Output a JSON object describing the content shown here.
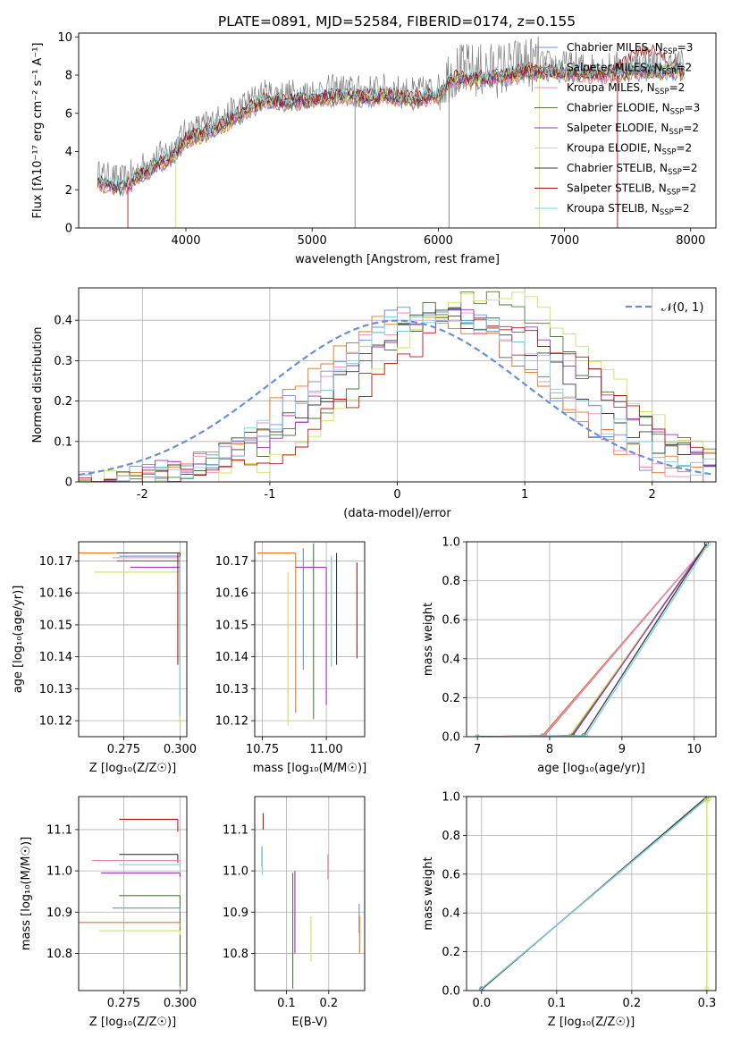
{
  "figure": {
    "title": "PLATE=0891, MJD=52584, FIBERID=0174, z=0.155"
  },
  "colors": {
    "chabrier_miles": "#6a8fd8",
    "salpeter_miles": "#e8731c",
    "kroupa_miles": "#f08ab4",
    "chabrier_elodie": "#4f7a3c",
    "salpeter_elodie": "#9a35b8",
    "kroupa_elodie": "#cfe35a",
    "chabrier_stelib": "#3b3b3b",
    "salpeter_stelib": "#b01818",
    "kroupa_stelib": "#7dd3dc",
    "data": "#808080",
    "normal_curve": "#6a8fd8",
    "grid": "#b0b0b0"
  },
  "chart_data": [
    {
      "id": "spectrum",
      "type": "line",
      "title": "PLATE=0891, MJD=52584, FIBERID=0174, z=0.155",
      "xlabel": "wavelength [Angstrom, rest frame]",
      "ylabel": "Flux [fλ10⁻¹⁷ erg cm⁻² s⁻¹ A⁻¹]",
      "xlim": [
        3150,
        8200
      ],
      "ylim": [
        0,
        10.2
      ],
      "xticks": [
        4000,
        5000,
        6000,
        7000,
        8000
      ],
      "yticks": [
        0,
        2,
        4,
        6,
        8,
        10
      ],
      "grid": false,
      "legend_position": "top-right",
      "continuum_x": [
        3300,
        3500,
        3700,
        3900,
        4000,
        4200,
        4400,
        4600,
        4800,
        5000,
        5200,
        5400,
        5600,
        5800,
        6000,
        6100,
        6300,
        6500,
        6700,
        7000,
        7300,
        7600,
        7900
      ],
      "continuum_y": [
        2.8,
        2.5,
        3.4,
        4.2,
        5.0,
        5.5,
        6.2,
        7.0,
        7.0,
        7.1,
        7.3,
        7.2,
        7.3,
        7.1,
        7.3,
        8.2,
        8.2,
        8.3,
        8.6,
        8.5,
        8.4,
        8.6,
        8.6
      ],
      "series": [
        {
          "name": "Chabrier MILES, N_SSP=3",
          "label_main": "Chabrier MILES, N",
          "label_sub": "SSP",
          "label_tail": "=3",
          "color_key": "chabrier_miles"
        },
        {
          "name": "Salpeter MILES, N_SSP=2",
          "label_main": "Salpeter MILES, N",
          "label_sub": "SSP",
          "label_tail": "=2",
          "color_key": "salpeter_miles"
        },
        {
          "name": "Kroupa MILES, N_SSP=2",
          "label_main": "Kroupa MILES, N",
          "label_sub": "SSP",
          "label_tail": "=2",
          "color_key": "kroupa_miles"
        },
        {
          "name": "Chabrier ELODIE, N_SSP=3",
          "label_main": "Chabrier ELODIE, N",
          "label_sub": "SSP",
          "label_tail": "=3",
          "color_key": "chabrier_elodie"
        },
        {
          "name": "Salpeter ELODIE, N_SSP=2",
          "label_main": "Salpeter ELODIE, N",
          "label_sub": "SSP",
          "label_tail": "=2",
          "color_key": "salpeter_elodie"
        },
        {
          "name": "Kroupa ELODIE, N_SSP=2",
          "label_main": "Kroupa ELODIE, N",
          "label_sub": "SSP",
          "label_tail": "=2",
          "color_key": "kroupa_elodie"
        },
        {
          "name": "Chabrier STELIB, N_SSP=2",
          "label_main": "Chabrier STELIB, N",
          "label_sub": "SSP",
          "label_tail": "=2",
          "color_key": "chabrier_stelib"
        },
        {
          "name": "Salpeter STELIB, N_SSP=2",
          "label_main": "Salpeter STELIB, N",
          "label_sub": "SSP",
          "label_tail": "=2",
          "color_key": "salpeter_stelib"
        },
        {
          "name": "Kroupa STELIB, N_SSP=2",
          "label_main": "Kroupa STELIB, N",
          "label_sub": "SSP",
          "label_tail": "=2",
          "color_key": "kroupa_stelib"
        }
      ]
    },
    {
      "id": "residuals",
      "type": "line",
      "xlabel": "(data-model)/error",
      "ylabel": "Normed distribution",
      "xlim": [
        -2.5,
        2.5
      ],
      "ylim": [
        0,
        0.48
      ],
      "xticks": [
        -2,
        -1,
        0,
        1,
        2
      ],
      "yticks": [
        0.0,
        0.1,
        0.2,
        0.3,
        0.4
      ],
      "grid": true,
      "legend_position": "top-right",
      "legend_label": "𝒩(0, 1)",
      "bin_width": 0.1,
      "hist_centers": [
        -2.5,
        -2.0,
        -1.5,
        -1.0,
        -0.5,
        0.0,
        0.5,
        1.0,
        1.5,
        2.0,
        2.5
      ],
      "hist_shifts": [
        0.25,
        0.2,
        0.3,
        0.6,
        0.55,
        0.75,
        0.45,
        0.7,
        0.35
      ],
      "hist_peaks": [
        0.43,
        0.41,
        0.42,
        0.45,
        0.41,
        0.46,
        0.4,
        0.4,
        0.42
      ],
      "hist_widths": [
        0.85,
        0.9,
        0.85,
        0.9,
        1.0,
        0.85,
        0.95,
        0.9,
        0.9
      ],
      "normal_mean": 0,
      "normal_sigma": 1
    },
    {
      "id": "age_vs_Z",
      "type": "scatter",
      "xlabel": "Z [log₁₀(Z/Z☉)]",
      "ylabel": "age  [log₁₀(age/yr)]",
      "xlim": [
        0.255,
        0.303
      ],
      "ylim": [
        10.115,
        10.176
      ],
      "xticks": [
        "0.275",
        "0.300"
      ],
      "yticks": [
        "10.12",
        "10.13",
        "10.14",
        "10.15",
        "10.16",
        "10.17"
      ],
      "grid": true,
      "points": [
        {
          "x": 0.3,
          "y": 10.1725,
          "xerr_low": 0.045,
          "yerr_low": 0.034,
          "color_key": "salpeter_miles"
        },
        {
          "x": 0.3,
          "y": 10.1715,
          "xerr_low": 0.027,
          "yerr_low": 0.052,
          "color_key": "chabrier_miles"
        },
        {
          "x": 0.3,
          "y": 10.171,
          "xerr_low": 0.03,
          "yerr_low": 0.05,
          "color_key": "kroupa_miles"
        },
        {
          "x": 0.3,
          "y": 10.17,
          "xerr_low": 0.028,
          "yerr_low": 0.048,
          "color_key": "chabrier_elodie"
        },
        {
          "x": 0.3,
          "y": 10.168,
          "xerr_low": 0.022,
          "yerr_low": 0.03,
          "color_key": "salpeter_elodie"
        },
        {
          "x": 0.3,
          "y": 10.1665,
          "xerr_low": 0.038,
          "yerr_low": 0.048,
          "color_key": "kroupa_elodie"
        },
        {
          "x": 0.3,
          "y": 10.1725,
          "xerr_low": 0.028,
          "yerr_low": 0.034,
          "color_key": "chabrier_stelib"
        },
        {
          "x": 0.299,
          "y": 10.1725,
          "xerr_low": 0.0,
          "yerr_low": 0.035,
          "color_key": "salpeter_stelib"
        },
        {
          "x": 0.3,
          "y": 10.1715,
          "xerr_low": 0.0,
          "yerr_low": 0.05,
          "color_key": "kroupa_stelib"
        }
      ]
    },
    {
      "id": "age_vs_mass",
      "type": "scatter",
      "xlabel": "mass [log₁₀(M/M☉)]",
      "ylabel": "",
      "xlim": [
        10.72,
        11.15
      ],
      "ylim": [
        10.115,
        10.176
      ],
      "xticks": [
        "10.75",
        "11.00"
      ],
      "yticks": [
        "10.12",
        "10.13",
        "10.14",
        "10.15",
        "10.16",
        "10.17"
      ],
      "grid": true,
      "points": [
        {
          "x": 10.91,
          "y": 10.174,
          "xerr_low": 0.0,
          "yerr_low": 0.038,
          "color_key": "chabrier_miles"
        },
        {
          "x": 10.88,
          "y": 10.1725,
          "xerr_low": 0.15,
          "yerr_low": 0.05,
          "color_key": "salpeter_miles"
        },
        {
          "x": 11.02,
          "y": 10.171,
          "xerr_low": 0.0,
          "yerr_low": 0.034,
          "color_key": "kroupa_miles"
        },
        {
          "x": 10.95,
          "y": 10.1755,
          "xerr_low": 0.0,
          "yerr_low": 0.055,
          "color_key": "chabrier_elodie"
        },
        {
          "x": 11.0,
          "y": 10.168,
          "xerr_low": 0.12,
          "yerr_low": 0.043,
          "color_key": "salpeter_elodie"
        },
        {
          "x": 10.85,
          "y": 10.1665,
          "xerr_low": 0.0,
          "yerr_low": 0.048,
          "color_key": "kroupa_elodie"
        },
        {
          "x": 11.04,
          "y": 10.1725,
          "xerr_low": 0.0,
          "yerr_low": 0.035,
          "color_key": "chabrier_stelib"
        },
        {
          "x": 11.12,
          "y": 10.1695,
          "xerr_low": 0.0,
          "yerr_low": 0.03,
          "color_key": "salpeter_stelib"
        },
        {
          "x": 11.02,
          "y": 10.1715,
          "xerr_low": 0.0,
          "yerr_low": 0.034,
          "color_key": "kroupa_stelib"
        }
      ]
    },
    {
      "id": "age_cdf",
      "type": "line",
      "xlabel": "age  [log₁₀(age/yr)]",
      "ylabel": "mass weight",
      "xlim": [
        6.85,
        10.3
      ],
      "ylim": [
        0,
        1
      ],
      "xticks": [
        "7",
        "8",
        "9",
        "10"
      ],
      "yticks": [
        "0.0",
        "0.2",
        "0.4",
        "0.6",
        "0.8",
        "1.0"
      ],
      "grid": true,
      "series": [
        {
          "color_key": "salpeter_miles",
          "x": [
            7.0,
            7.9,
            10.17
          ],
          "y": [
            0,
            0.005,
            0.98
          ]
        },
        {
          "color_key": "chabrier_miles",
          "x": [
            7.0,
            7.93,
            10.17
          ],
          "y": [
            0,
            0.005,
            0.98
          ]
        },
        {
          "color_key": "kroupa_miles",
          "x": [
            7.0,
            7.92,
            10.17
          ],
          "y": [
            0,
            0.005,
            0.98
          ]
        },
        {
          "color_key": "chabrier_elodie",
          "x": [
            7.0,
            8.3,
            10.17
          ],
          "y": [
            0,
            0.005,
            0.99
          ]
        },
        {
          "color_key": "kroupa_elodie",
          "x": [
            7.0,
            8.28,
            10.17
          ],
          "y": [
            0,
            0.005,
            0.98
          ]
        },
        {
          "color_key": "salpeter_elodie",
          "x": [
            7.0,
            8.32,
            10.17
          ],
          "y": [
            0,
            0.005,
            0.99
          ]
        },
        {
          "color_key": "chabrier_stelib",
          "x": [
            7.0,
            8.47,
            10.17
          ],
          "y": [
            0,
            0.005,
            0.99
          ]
        },
        {
          "color_key": "kroupa_stelib",
          "x": [
            7.0,
            8.5,
            10.2
          ],
          "y": [
            0,
            0.005,
            0.99
          ]
        }
      ]
    },
    {
      "id": "mass_vs_Z",
      "type": "scatter",
      "xlabel": "Z [log₁₀(Z/Z☉)]",
      "ylabel": "mass [log₁₀(M/M☉)]",
      "xlim": [
        0.255,
        0.303
      ],
      "ylim": [
        10.71,
        11.18
      ],
      "xticks": [
        "0.275",
        "0.300"
      ],
      "yticks": [
        "10.8",
        "10.9",
        "11.0",
        "11.1"
      ],
      "grid": true,
      "points": [
        {
          "x": 0.299,
          "y": 11.125,
          "xerr_low": 0.026,
          "yerr_low": 0.03,
          "color_key": "salpeter_stelib"
        },
        {
          "x": 0.299,
          "y": 11.04,
          "xerr_low": 0.026,
          "yerr_low": 0.02,
          "color_key": "chabrier_stelib"
        },
        {
          "x": 0.3,
          "y": 11.025,
          "xerr_low": 0.039,
          "yerr_low": 0.01,
          "color_key": "kroupa_miles"
        },
        {
          "x": 0.3,
          "y": 11.015,
          "xerr_low": 0.027,
          "yerr_low": 0.01,
          "color_key": "kroupa_stelib"
        },
        {
          "x": 0.3,
          "y": 10.995,
          "xerr_low": 0.035,
          "yerr_low": 0.01,
          "color_key": "salpeter_elodie"
        },
        {
          "x": 0.3,
          "y": 10.94,
          "xerr_low": 0.027,
          "yerr_low": 0.22,
          "color_key": "chabrier_elodie"
        },
        {
          "x": 0.3,
          "y": 10.91,
          "xerr_low": 0.03,
          "yerr_low": 0.01,
          "color_key": "chabrier_miles"
        },
        {
          "x": 0.3,
          "y": 10.875,
          "xerr_low": 0.046,
          "yerr_low": 0.01,
          "color_key": "salpeter_miles"
        },
        {
          "x": 0.3,
          "y": 10.855,
          "xerr_low": 0.036,
          "yerr_low": 0.01,
          "color_key": "kroupa_elodie"
        }
      ]
    },
    {
      "id": "mass_vs_ebv",
      "type": "scatter",
      "xlabel": "E(B-V)",
      "ylabel": "",
      "xlim": [
        0.025,
        0.285
      ],
      "ylim": [
        10.71,
        11.18
      ],
      "xticks": [
        "0.1",
        "0.2"
      ],
      "yticks": [
        "10.8",
        "10.9",
        "11.0",
        "11.1"
      ],
      "grid": true,
      "points": [
        {
          "x": 0.045,
          "y": 11.14,
          "yerr_low": 0.04,
          "color_key": "salpeter_stelib"
        },
        {
          "x": 0.042,
          "y": 11.06,
          "yerr_low": 0.05,
          "color_key": "chabrier_miles"
        },
        {
          "x": 0.043,
          "y": 11.05,
          "yerr_low": 0.06,
          "color_key": "kroupa_stelib"
        },
        {
          "x": 0.198,
          "y": 11.04,
          "yerr_low": 0.06,
          "color_key": "kroupa_miles"
        },
        {
          "x": 0.12,
          "y": 11.0,
          "yerr_low": 0.2,
          "color_key": "salpeter_elodie"
        },
        {
          "x": 0.115,
          "y": 10.995,
          "yerr_low": 0.28,
          "color_key": "chabrier_elodie"
        },
        {
          "x": 0.158,
          "y": 10.89,
          "yerr_low": 0.11,
          "color_key": "kroupa_elodie"
        },
        {
          "x": 0.272,
          "y": 10.92,
          "yerr_low": 0.07,
          "color_key": "chabrier_miles"
        },
        {
          "x": 0.273,
          "y": 10.89,
          "yerr_low": 0.09,
          "color_key": "salpeter_miles"
        }
      ]
    },
    {
      "id": "Z_cdf",
      "type": "line",
      "xlabel": "Z [log₁₀(Z/Z☉)]",
      "ylabel": "mass weight",
      "xlim": [
        -0.02,
        0.312
      ],
      "ylim": [
        0,
        1
      ],
      "xticks": [
        "0.0",
        "0.1",
        "0.2",
        "0.3"
      ],
      "yticks": [
        "0.0",
        "0.2",
        "0.4",
        "0.6",
        "0.8",
        "1.0"
      ],
      "grid": true,
      "series": [
        {
          "color_key": "salpeter_miles",
          "x": [
            0.0,
            0.3
          ],
          "y": [
            0.01,
            0.99
          ]
        },
        {
          "color_key": "chabrier_miles",
          "x": [
            0.0,
            0.3
          ],
          "y": [
            0.01,
            0.99
          ]
        },
        {
          "color_key": "chabrier_elodie",
          "x": [
            0.0,
            0.3
          ],
          "y": [
            0.01,
            0.99
          ]
        },
        {
          "color_key": "chabrier_stelib",
          "x": [
            0.0,
            0.3
          ],
          "y": [
            0.005,
            1.0
          ]
        },
        {
          "color_key": "kroupa_stelib",
          "x": [
            0.0,
            0.3
          ],
          "y": [
            0.01,
            0.99
          ]
        },
        {
          "color_key": "kroupa_elodie",
          "x": [
            0.3,
            0.3
          ],
          "y": [
            0.01,
            0.98
          ]
        },
        {
          "color_key": "kroupa_elodie",
          "x": [
            0.3,
            0.303
          ],
          "y": [
            0.98,
            0.99
          ]
        }
      ]
    }
  ]
}
